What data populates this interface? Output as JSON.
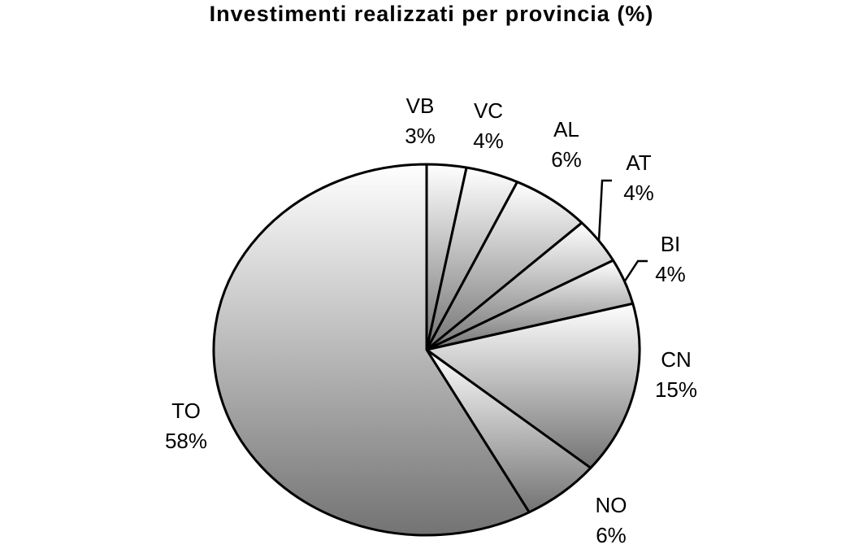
{
  "title": "Investimenti realizzati per provincia (%)",
  "chart_data": {
    "type": "pie",
    "title": "Investimenti realizzati per provincia (%)",
    "categories": [
      "VB",
      "VC",
      "AL",
      "AT",
      "BI",
      "CN",
      "NO",
      "TO"
    ],
    "values": [
      3,
      4,
      6,
      4,
      4,
      15,
      6,
      58
    ],
    "value_labels": [
      "3%",
      "4%",
      "6%",
      "4%",
      "4%",
      "15%",
      "6%",
      "58%"
    ],
    "start": "12 o'clock",
    "direction": "clockwise",
    "legend": "none",
    "fill": "grey gradient, light at top to dark at bottom",
    "colors": {
      "gradient_light": "#ffffff",
      "gradient_dark": "#737373",
      "outline": "#000000"
    }
  }
}
